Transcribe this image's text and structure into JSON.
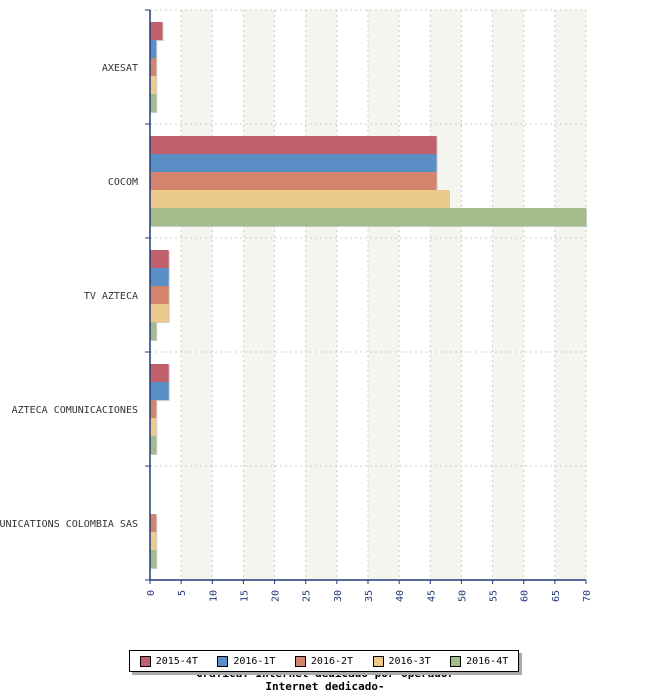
{
  "chart_data": {
    "type": "bar",
    "orientation": "horizontal",
    "title": "Grafica: Internet dedicado por operador",
    "subtitle": "Internet dedicado-",
    "categories": [
      "AXESAT",
      "COCOM",
      "TV AZTECA",
      "AZTECA COMUNICACIONES",
      "UNICATIONS COLOMBIA SAS"
    ],
    "series": [
      {
        "name": "2015-4T",
        "color": "#c0606a",
        "values": [
          2,
          46,
          3,
          3,
          0
        ]
      },
      {
        "name": "2016-1T",
        "color": "#5b8ec4",
        "values": [
          1,
          46,
          3,
          3,
          0
        ]
      },
      {
        "name": "2016-2T",
        "color": "#d4846c",
        "values": [
          1,
          46,
          3,
          1,
          1
        ]
      },
      {
        "name": "2016-3T",
        "color": "#ecca8a",
        "values": [
          1,
          48,
          3,
          1,
          1
        ]
      },
      {
        "name": "2016-4T",
        "color": "#a2bd8a",
        "values": [
          1,
          70,
          1,
          1,
          1
        ]
      }
    ],
    "xlim": [
      0,
      70
    ],
    "xticks": [
      "0",
      "5",
      "10",
      "15",
      "20",
      "25",
      "30",
      "35",
      "40",
      "45",
      "50",
      "55",
      "60",
      "65",
      "70"
    ],
    "grid": true,
    "legend_position": "bottom"
  }
}
